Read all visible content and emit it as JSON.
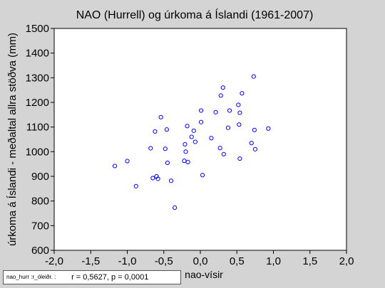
{
  "chart_data": {
    "type": "scatter",
    "title": "NAO (Hurrell) og úrkoma á Íslandi (1961-2007)",
    "xlabel": "nao-vísir",
    "ylabel": "úrkoma á Íslandi - meðaltal allra stöðva (mm)",
    "xlim": [
      -2.0,
      2.0
    ],
    "ylim": [
      600,
      1500
    ],
    "xticks": [
      "-2,0",
      "-1,5",
      "-1,0",
      "-0,5",
      "0,0",
      "0,5",
      "1,0",
      "1,5",
      "2,0"
    ],
    "yticks": [
      "600",
      "700",
      "800",
      "900",
      "1000",
      "1100",
      "1200",
      "1300",
      "1400",
      "1500"
    ],
    "grid": false,
    "marker_color": "#0000ff",
    "legend": {
      "name": "nao_hurr :r_óleiðr. :",
      "stat": "r = 0,5627, p = 0,0001"
    },
    "points": [
      {
        "x": -1.17,
        "y": 942
      },
      {
        "x": -1.0,
        "y": 962
      },
      {
        "x": -0.88,
        "y": 860
      },
      {
        "x": -0.68,
        "y": 1014
      },
      {
        "x": -0.65,
        "y": 893
      },
      {
        "x": -0.62,
        "y": 1082
      },
      {
        "x": -0.6,
        "y": 900
      },
      {
        "x": -0.58,
        "y": 890
      },
      {
        "x": -0.54,
        "y": 1140
      },
      {
        "x": -0.48,
        "y": 1012
      },
      {
        "x": -0.46,
        "y": 1090
      },
      {
        "x": -0.45,
        "y": 955
      },
      {
        "x": -0.4,
        "y": 882
      },
      {
        "x": -0.35,
        "y": 773
      },
      {
        "x": -0.22,
        "y": 963
      },
      {
        "x": -0.21,
        "y": 1030
      },
      {
        "x": -0.2,
        "y": 1000
      },
      {
        "x": -0.18,
        "y": 1104
      },
      {
        "x": -0.17,
        "y": 958
      },
      {
        "x": -0.12,
        "y": 1060
      },
      {
        "x": -0.09,
        "y": 1085
      },
      {
        "x": -0.07,
        "y": 1040
      },
      {
        "x": 0.01,
        "y": 1120
      },
      {
        "x": 0.01,
        "y": 1167
      },
      {
        "x": 0.03,
        "y": 905
      },
      {
        "x": 0.15,
        "y": 1055
      },
      {
        "x": 0.21,
        "y": 1160
      },
      {
        "x": 0.27,
        "y": 1015
      },
      {
        "x": 0.28,
        "y": 1228
      },
      {
        "x": 0.31,
        "y": 1260
      },
      {
        "x": 0.32,
        "y": 990
      },
      {
        "x": 0.38,
        "y": 1097
      },
      {
        "x": 0.4,
        "y": 1167
      },
      {
        "x": 0.52,
        "y": 1190
      },
      {
        "x": 0.53,
        "y": 1110
      },
      {
        "x": 0.54,
        "y": 1158
      },
      {
        "x": 0.54,
        "y": 972
      },
      {
        "x": 0.57,
        "y": 1237
      },
      {
        "x": 0.7,
        "y": 1035
      },
      {
        "x": 0.73,
        "y": 1305
      },
      {
        "x": 0.74,
        "y": 1088
      },
      {
        "x": 0.75,
        "y": 1010
      },
      {
        "x": 0.93,
        "y": 1094
      }
    ]
  }
}
